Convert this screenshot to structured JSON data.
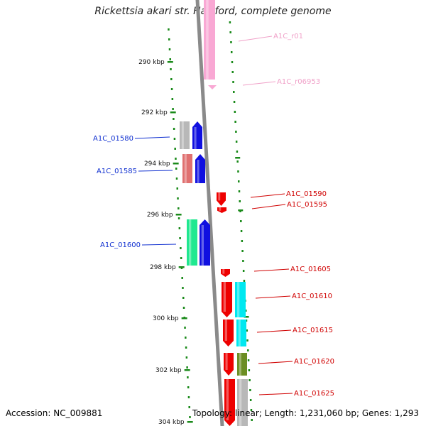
{
  "title": "Rickettsia akari str. Hartford, complete genome",
  "footer": {
    "accession": "Accession: NC_009881",
    "info": "Topology: linear; Length: 1,231,060 bp; Genes: 1,293"
  },
  "colors": {
    "backbone": "#8a8a8a",
    "ruler": "#1a8a1a",
    "blue_label": "#1030d0",
    "red_label": "#d00000",
    "pink_label": "#f0a0c8"
  },
  "ticks": [
    "290 kbp",
    "292 kbp",
    "294 kbp",
    "296 kbp",
    "298 kbp",
    "300 kbp",
    "302 kbp",
    "304 kbp"
  ],
  "genes": [
    {
      "name": "A1C_r01",
      "strand": "forward",
      "color": "#f9a8d4"
    },
    {
      "name": "A1C_r06953",
      "strand": "forward",
      "color": "#f9a8d4"
    },
    {
      "name": "A1C_01580",
      "strand": "reverse",
      "color": "#1010e0",
      "cog_color": "#b8b8b8"
    },
    {
      "name": "A1C_01585",
      "strand": "reverse",
      "color": "#1010e0",
      "cog_color": "#e07070"
    },
    {
      "name": "A1C_01590",
      "strand": "forward",
      "color": "#ee0000"
    },
    {
      "name": "A1C_01595",
      "strand": "forward",
      "color": "#ee0000"
    },
    {
      "name": "A1C_01600",
      "strand": "reverse",
      "color": "#1010e0",
      "cog_color": "#20e890"
    },
    {
      "name": "A1C_01605",
      "strand": "forward",
      "color": "#ee0000"
    },
    {
      "name": "A1C_01610",
      "strand": "forward",
      "color": "#ee0000",
      "cog_color": "#00e8f0"
    },
    {
      "name": "A1C_01615",
      "strand": "forward",
      "color": "#ee0000",
      "cog_color": "#00e8f0"
    },
    {
      "name": "A1C_01620",
      "strand": "forward",
      "color": "#ee0000",
      "cog_color": "#6b8e23"
    },
    {
      "name": "A1C_01625",
      "strand": "forward",
      "color": "#ee0000",
      "cog_color": "#b8b8b8"
    }
  ]
}
